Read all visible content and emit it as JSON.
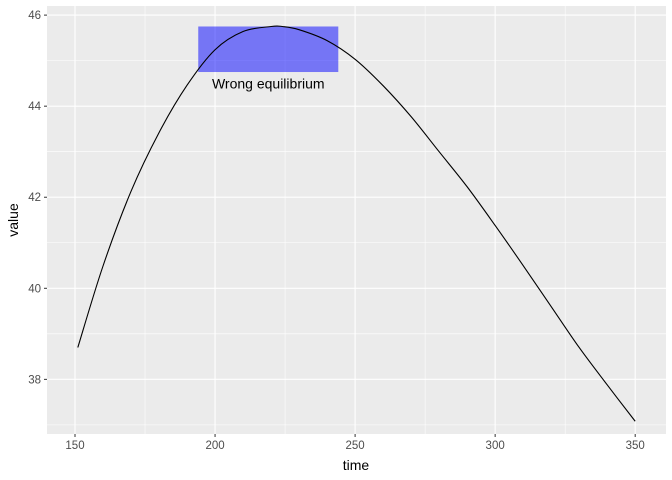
{
  "chart_data": {
    "type": "line",
    "xlabel": "time",
    "ylabel": "value",
    "xlim": [
      140,
      361
    ],
    "ylim": [
      36.8,
      46.2
    ],
    "x_ticks": [
      150,
      200,
      250,
      300,
      350
    ],
    "y_ticks": [
      38,
      40,
      42,
      44,
      46
    ],
    "grid": true,
    "series": [
      {
        "x": [
          151,
          160,
          170,
          180,
          190,
          200,
          210,
          220,
          224,
          230,
          240,
          250,
          260,
          270,
          280,
          290,
          300,
          310,
          320,
          330,
          340,
          350
        ],
        "y": [
          38.7,
          40.49,
          42.13,
          43.42,
          44.46,
          45.24,
          45.64,
          45.75,
          45.75,
          45.68,
          45.44,
          45.03,
          44.45,
          43.77,
          43.0,
          42.23,
          41.38,
          40.5,
          39.6,
          38.7,
          37.88,
          37.08
        ]
      }
    ],
    "annotations": [
      {
        "type": "rect",
        "xmin": 194,
        "xmax": 244,
        "ymin": 44.75,
        "ymax": 45.75,
        "fill": "#0000ff",
        "alpha": 0.5
      },
      {
        "type": "text",
        "label": "Wrong equilibrium",
        "x": 219,
        "y": 44.5
      }
    ],
    "colors": {
      "panel": "#ebebeb",
      "grid": "#ffffff",
      "line": "#000000",
      "tick_text": "#4d4d4d"
    }
  }
}
